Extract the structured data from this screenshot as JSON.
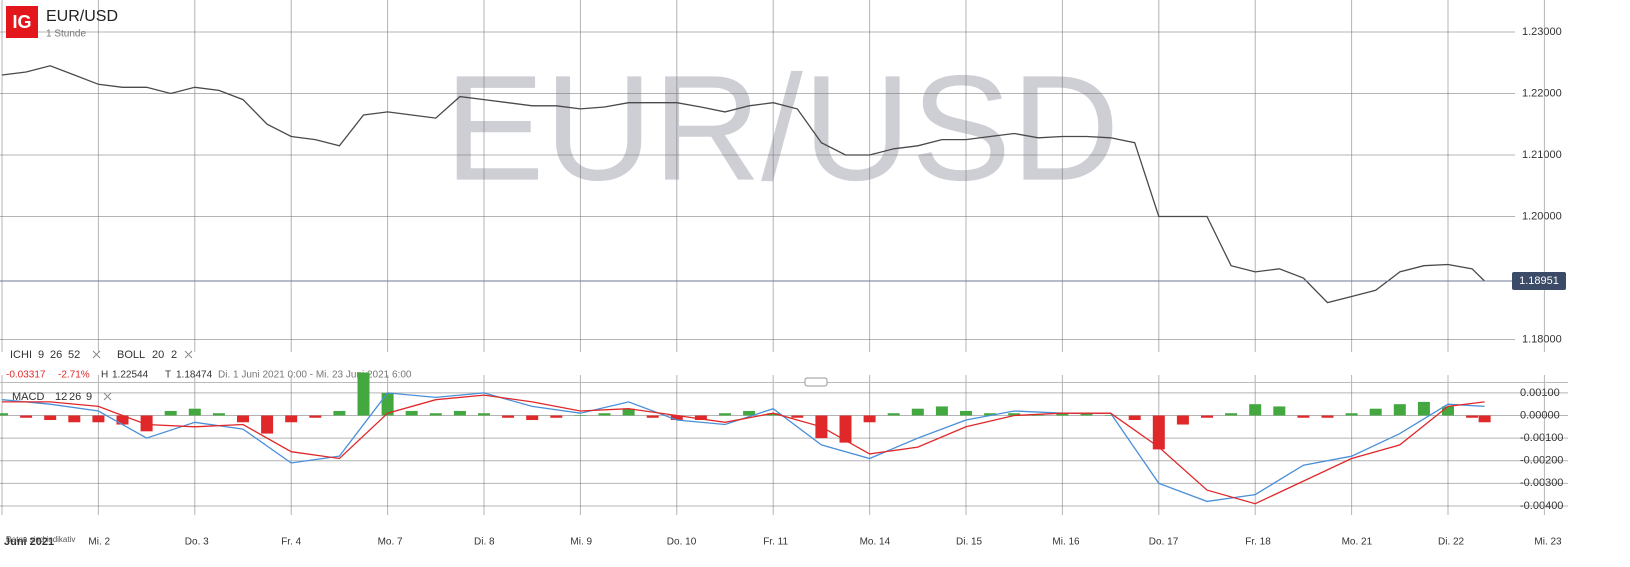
{
  "header": {
    "logo": "IG",
    "title": "EUR/USD",
    "interval": "1 Stunde"
  },
  "indicators": {
    "ichi": {
      "name": "ICHI",
      "params": [
        "9",
        "26",
        "52"
      ]
    },
    "boll": {
      "name": "BOLL",
      "params": [
        "20",
        "2"
      ]
    },
    "stats": {
      "change": "-0.03317",
      "change_pct": "-2.71%",
      "high_label": "H",
      "high": "1.22544",
      "low_label": "T",
      "low": "1.18474",
      "range": "Di. 1 Juni 2021 0:00 - Mi. 23 Juni 2021 6:00"
    },
    "macd": {
      "name": "MACD",
      "params": [
        "12",
        "26",
        "9"
      ]
    }
  },
  "footnote": "Daten sind indikativ",
  "chart_data": [
    {
      "type": "line",
      "xlim": [
        0,
        16
      ],
      "xticks": [
        {
          "value": 0,
          "label": "Juni 2021"
        },
        {
          "value": 1,
          "label": "Mi. 2"
        },
        {
          "value": 2,
          "label": "Do. 3"
        },
        {
          "value": 3,
          "label": "Fr. 4"
        },
        {
          "value": 4,
          "label": "Mo. 7"
        },
        {
          "value": 5,
          "label": "Di. 8"
        },
        {
          "value": 6,
          "label": "Mi. 9"
        },
        {
          "value": 7,
          "label": "Do. 10"
        },
        {
          "value": 8,
          "label": "Fr. 11"
        },
        {
          "value": 9,
          "label": "Mo. 14"
        },
        {
          "value": 10,
          "label": "Di. 15"
        },
        {
          "value": 11,
          "label": "Mi. 16"
        },
        {
          "value": 12,
          "label": "Do. 17"
        },
        {
          "value": 13,
          "label": "Fr. 18"
        },
        {
          "value": 14,
          "label": "Mo. 21"
        },
        {
          "value": 15,
          "label": "Di. 22"
        },
        {
          "value": 16,
          "label": "Mi. 23"
        }
      ],
      "ylim": [
        1.17797,
        1.2352
      ],
      "yticks": [
        {
          "value": 1.18,
          "label": "1.18000"
        },
        {
          "value": 1.2,
          "label": "1.20000"
        },
        {
          "value": 1.21,
          "label": "1.21000"
        },
        {
          "value": 1.22,
          "label": "1.22000"
        },
        {
          "value": 1.23,
          "label": "1.23000"
        }
      ],
      "current": 1.18951,
      "series": [
        {
          "color": "#4a4a4a",
          "x": [
            0,
            0.25,
            0.5,
            0.75,
            1,
            1.25,
            1.5,
            1.75,
            2,
            2.25,
            2.5,
            2.75,
            3,
            3.25,
            3.5,
            3.75,
            4,
            4.25,
            4.5,
            4.75,
            5,
            5.25,
            5.5,
            5.75,
            6,
            6.25,
            6.5,
            6.75,
            7,
            7.25,
            7.5,
            7.75,
            8,
            8.25,
            8.5,
            8.75,
            9,
            9.25,
            9.5,
            9.75,
            10,
            10.25,
            10.5,
            10.75,
            11,
            11.25,
            11.5,
            11.75,
            12,
            12.25,
            12.5,
            12.75,
            13,
            13.25,
            13.5,
            13.75,
            14,
            14.25,
            14.5,
            14.75,
            15,
            15.25,
            15.38
          ],
          "values": [
            1.223,
            1.2235,
            1.2245,
            1.223,
            1.2215,
            1.221,
            1.221,
            1.22,
            1.221,
            1.2205,
            1.219,
            1.215,
            1.213,
            1.2125,
            1.2115,
            1.2165,
            1.217,
            1.2165,
            1.216,
            1.2195,
            1.219,
            1.2185,
            1.218,
            1.218,
            1.2175,
            1.2178,
            1.2185,
            1.2185,
            1.2185,
            1.2178,
            1.217,
            1.218,
            1.2185,
            1.2175,
            1.212,
            1.21,
            1.21,
            1.211,
            1.2115,
            1.2125,
            1.2125,
            1.213,
            1.2135,
            1.2128,
            1.213,
            1.213,
            1.2128,
            1.212,
            1.2,
            1.2,
            1.2,
            1.192,
            1.191,
            1.1915,
            1.19,
            1.186,
            1.187,
            1.188,
            1.191,
            1.192,
            1.1922,
            1.1915,
            1.1895
          ]
        }
      ]
    },
    {
      "type": "macd",
      "xlim": [
        0,
        16
      ],
      "ylim": [
        -0.0044,
        0.00179
      ],
      "yticks": [
        {
          "value": 0.001,
          "label": "0.00100"
        },
        {
          "value": 0,
          "label": "0.00000"
        },
        {
          "value": -0.001,
          "label": "-0.00100"
        },
        {
          "value": -0.002,
          "label": "-0.00200"
        },
        {
          "value": -0.003,
          "label": "-0.00300"
        },
        {
          "value": -0.004,
          "label": "-0.00400"
        }
      ],
      "up_color": "#43a83f",
      "down_color": "#e0282a",
      "series": [
        {
          "kind": "bar",
          "x": [
            0,
            0.25,
            0.5,
            0.75,
            1,
            1.25,
            1.5,
            1.75,
            2,
            2.25,
            2.5,
            2.75,
            3,
            3.25,
            3.5,
            3.75,
            4,
            4.25,
            4.5,
            4.75,
            5,
            5.25,
            5.5,
            5.75,
            6,
            6.25,
            6.5,
            6.75,
            7,
            7.25,
            7.5,
            7.75,
            8,
            8.25,
            8.5,
            8.75,
            9,
            9.25,
            9.5,
            9.75,
            10,
            10.25,
            10.5,
            10.75,
            11,
            11.25,
            11.5,
            11.75,
            12,
            12.25,
            12.5,
            12.75,
            13,
            13.25,
            13.5,
            13.75,
            14,
            14.25,
            14.5,
            14.75,
            15,
            15.25,
            15.38
          ],
          "values": [
            0.0001,
            -0.0001,
            -0.0002,
            -0.0003,
            -0.0003,
            -0.0004,
            -0.0007,
            0.0002,
            0.0003,
            0.0001,
            -0.0003,
            -0.0008,
            -0.0003,
            -0.0001,
            0.0002,
            0.0019,
            0.001,
            0.0002,
            0.0001,
            0.0002,
            0.0001,
            -0.0001,
            -0.0002,
            -0.0001,
            0,
            0.0001,
            0.0003,
            -0.0001,
            -0.0002,
            -0.0002,
            0.0001,
            0.0002,
            0.0001,
            -0.0001,
            -0.001,
            -0.0012,
            -0.0003,
            0.0001,
            0.0003,
            0.0004,
            0.0002,
            0.0001,
            0.0001,
            0,
            0.0001,
            0.0001,
            0,
            -0.0002,
            -0.0015,
            -0.0004,
            -0.0001,
            0.0001,
            0.0005,
            0.0004,
            -0.0001,
            -0.0001,
            0.0001,
            0.0003,
            0.0005,
            0.0006,
            0.0004,
            -0.0001,
            -0.0003
          ]
        },
        {
          "kind": "line",
          "color": "#4a90d9",
          "x": [
            0,
            0.5,
            1,
            1.5,
            2,
            2.5,
            3,
            3.5,
            4,
            4.5,
            5,
            5.5,
            6,
            6.5,
            7,
            7.5,
            8,
            8.5,
            9,
            9.5,
            10,
            10.5,
            11,
            11.5,
            12,
            12.5,
            13,
            13.5,
            14,
            14.5,
            15,
            15.38
          ],
          "values": [
            0.0007,
            0.0005,
            0.0002,
            -0.001,
            -0.0003,
            -0.0006,
            -0.0021,
            -0.0018,
            0.001,
            0.0008,
            0.001,
            0.0004,
            0.0001,
            0.0006,
            -0.0002,
            -0.0004,
            0.0003,
            -0.0013,
            -0.0019,
            -0.001,
            -0.0002,
            0.0002,
            0.0001,
            0.0001,
            -0.003,
            -0.0038,
            -0.0035,
            -0.0022,
            -0.0018,
            -0.0008,
            0.0005,
            0.0004
          ]
        },
        {
          "kind": "line",
          "color": "#e0282a",
          "x": [
            0,
            0.5,
            1,
            1.5,
            2,
            2.5,
            3,
            3.5,
            4,
            4.5,
            5,
            5.5,
            6,
            6.5,
            7,
            7.5,
            8,
            8.5,
            9,
            9.5,
            10,
            10.5,
            11,
            11.5,
            12,
            12.5,
            13,
            13.5,
            14,
            14.5,
            15,
            15.38
          ],
          "values": [
            0.0006,
            0.0006,
            0.0004,
            -0.0004,
            -0.0005,
            -0.0004,
            -0.0016,
            -0.0019,
            0.0001,
            0.0007,
            0.0009,
            0.0006,
            0.0002,
            0.0003,
            0,
            -0.0003,
            0.0001,
            -0.0005,
            -0.0017,
            -0.0014,
            -0.0005,
            0,
            0.0001,
            0.0001,
            -0.0014,
            -0.0033,
            -0.0039,
            -0.0029,
            -0.0019,
            -0.0013,
            0.0004,
            0.0006
          ]
        }
      ]
    }
  ]
}
